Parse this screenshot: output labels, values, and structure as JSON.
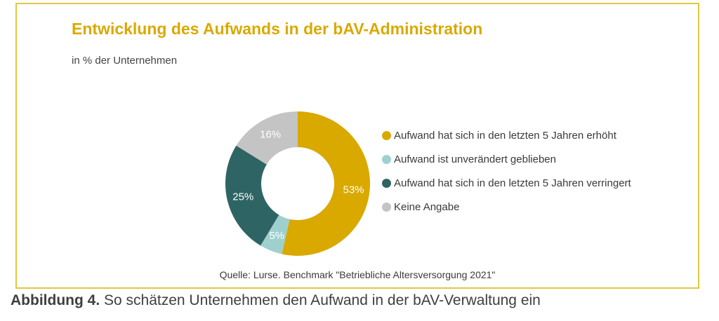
{
  "title": "Entwicklung des Aufwands in der bAV-Administration",
  "subtitle": "in % der Unternehmen",
  "source": "Quelle: Lurse. Benchmark \"Betriebliche Altersversorgung 2021\"",
  "caption": {
    "label": "Abbildung 4.",
    "text": " So schätzen Unternehmen den Aufwand in der bAV-Verwaltung ein"
  },
  "chart_data": {
    "type": "pie",
    "title": "Entwicklung des Aufwands in der bAV-Administration",
    "legend_position": "right",
    "donut": true,
    "unit": "%",
    "slices": [
      {
        "name": "Aufwand hat sich in den letzten 5 Jahren erhöht",
        "value": 53,
        "label": "53%",
        "color": "#d9a900"
      },
      {
        "name": "Aufwand ist unverändert geblieben",
        "value": 5,
        "label": "5%",
        "color": "#9fd0ce"
      },
      {
        "name": "Aufwand hat sich in den letzten 5 Jahren verringert",
        "value": 25,
        "label": "25%",
        "color": "#2f6464"
      },
      {
        "name": "Keine Angabe",
        "value": 16,
        "label": "16%",
        "color": "#c4c4c4"
      }
    ]
  }
}
